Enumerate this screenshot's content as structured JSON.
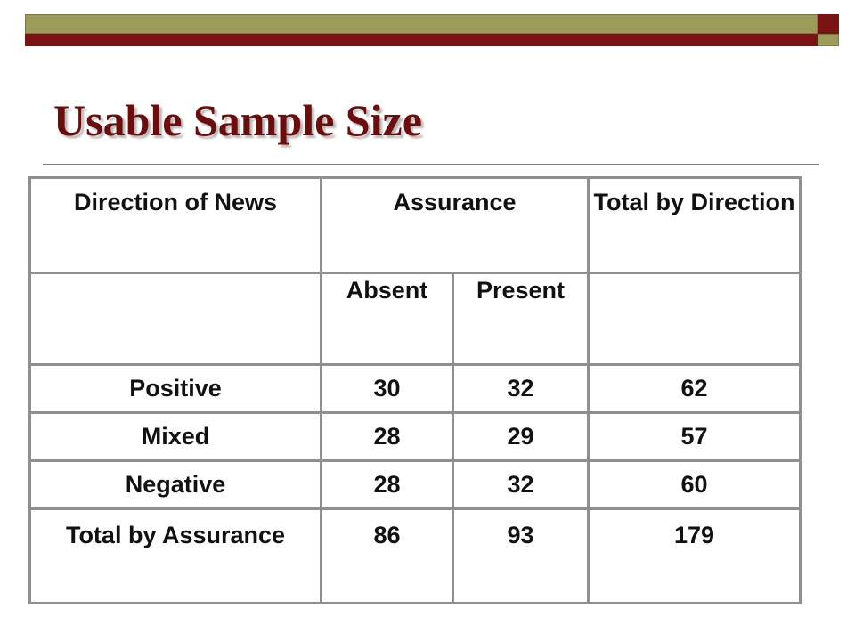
{
  "slide": {
    "title": "Usable Sample Size"
  },
  "table": {
    "header": {
      "direction": "Direction of News",
      "assurance": "Assurance",
      "total": "Total by Direction"
    },
    "subheader": {
      "absent": "Absent",
      "present": "Present"
    },
    "rows": [
      {
        "label": "Positive",
        "absent": "30",
        "present": "32",
        "total": "62"
      },
      {
        "label": "Mixed",
        "absent": "28",
        "present": "29",
        "total": "57"
      },
      {
        "label": "Negative",
        "absent": "28",
        "present": "32",
        "total": "60"
      }
    ],
    "total_row": {
      "label": "Total by Assurance",
      "absent": "86",
      "present": "93",
      "total": "179"
    }
  },
  "colors": {
    "title": "#6b0d0d",
    "bar_olive": "#9b9b5c",
    "bar_maroon": "#7a1414",
    "table_border": "#8f8f8f"
  }
}
